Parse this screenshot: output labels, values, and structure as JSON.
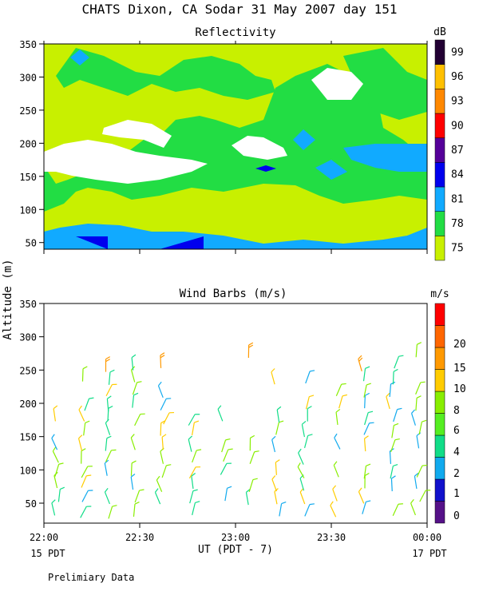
{
  "page": {
    "title": "CHATS Dixon, CA  Sodar  31 May 2007  day 151",
    "ylabel": "Altitude (m)",
    "xlabel": "UT  (PDT - 7)",
    "left_date": "15 PDT",
    "right_date": "17 PDT",
    "footnote": "Prelimiary Data"
  },
  "colors": {
    "reflectivity_scale": [
      "#c8f000",
      "#22dd44",
      "#11aaff",
      "#0000ee",
      "#550099",
      "#ff0000",
      "#ff8800",
      "#ffc000",
      "#220033"
    ],
    "wind_scale": [
      "#551188",
      "#1111cc",
      "#11aaee",
      "#11dd88",
      "#55ee22",
      "#88ee00",
      "#ffcc00",
      "#ff9900",
      "#ff6600",
      "#ff0000"
    ]
  },
  "chart_data": [
    {
      "type": "heatmap",
      "title": "Reflectivity",
      "x_ticks": [
        "22:00",
        "22:30",
        "23:00",
        "23:30",
        "00:00"
      ],
      "y_ticks": [
        "50",
        "100",
        "150",
        "200",
        "250",
        "300",
        "350"
      ],
      "ylim": [
        40,
        350
      ],
      "colorbar_unit": "dB",
      "colorbar_labels": [
        "75",
        "78",
        "81",
        "84",
        "87",
        "90",
        "93",
        "96",
        "99"
      ],
      "levels": [
        {
          "level": 75,
          "description": "background"
        },
        {
          "level": 78,
          "description": "broad band across most heights and times"
        },
        {
          "level": 81,
          "description": "lowest ~30 m near surface and a few isolated patches"
        },
        {
          "level": 84,
          "description": "small cores near 40-55 m and 160 m"
        }
      ]
    },
    {
      "type": "scatter",
      "title": "Wind Barbs (m/s)",
      "x_ticks": [
        "22:00",
        "22:30",
        "23:00",
        "23:30",
        "00:00"
      ],
      "y_ticks": [
        "50",
        "100",
        "150",
        "200",
        "250",
        "300",
        "350"
      ],
      "ylim": [
        20,
        350
      ],
      "colorbar_unit": "m/s",
      "colorbar_labels": [
        "0",
        "1",
        "2",
        "4",
        "6",
        "8",
        "10",
        "15",
        "20"
      ],
      "times_min": [
        4,
        12,
        20,
        28,
        37,
        46,
        56,
        64,
        73,
        82,
        92,
        100,
        109,
        117
      ],
      "heights": [
        30,
        50,
        70,
        90,
        110,
        130,
        150,
        170,
        190,
        210,
        230,
        250,
        270
      ],
      "speed_field": "light winds 3-9 m/s at most heights, stronger winds 10-14 m/s near 250-270 m"
    }
  ]
}
